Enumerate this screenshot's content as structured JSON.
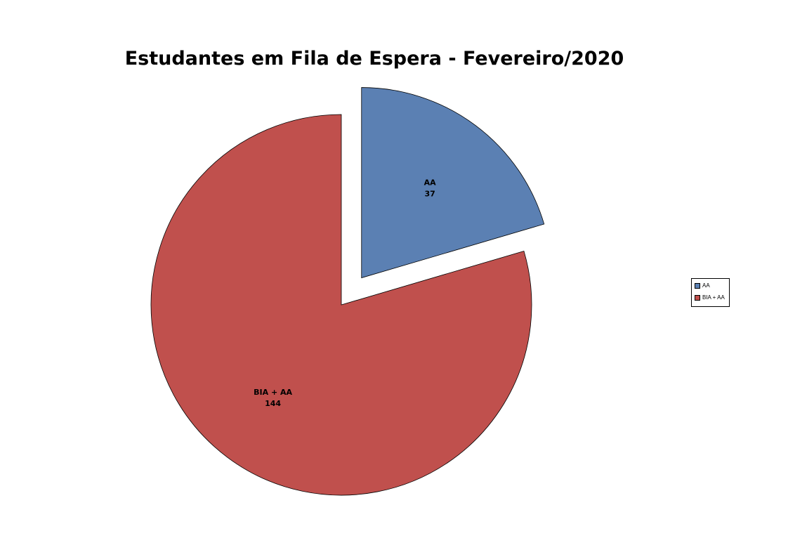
{
  "chart_data": {
    "type": "pie",
    "title": "Estudantes em Fila de Espera - Fevereiro/2020",
    "categories": [
      "AA",
      "BIA + AA"
    ],
    "values": [
      37,
      144
    ],
    "colors": [
      "#5b80b3",
      "#c0504d"
    ],
    "exploded": [
      "AA"
    ],
    "legend": {
      "position": "right",
      "entries": [
        "AA",
        "BIA + AA"
      ]
    }
  }
}
